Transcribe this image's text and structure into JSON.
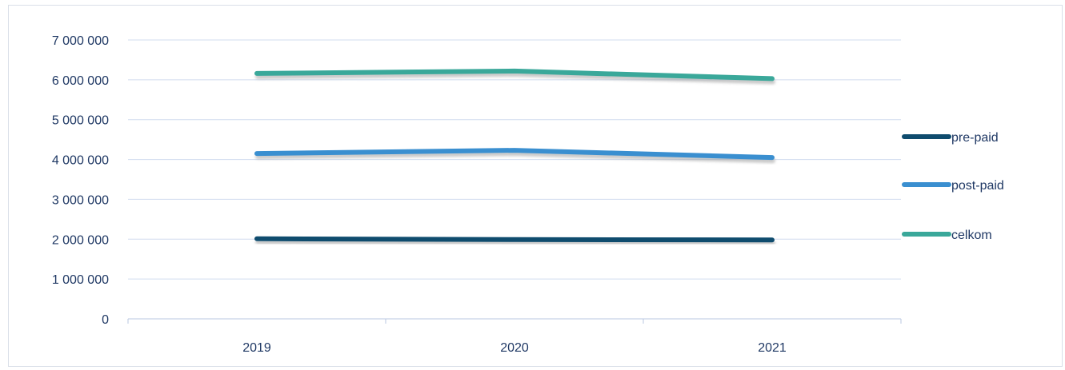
{
  "chart_data": {
    "type": "line",
    "categories": [
      "2019",
      "2020",
      "2021"
    ],
    "series": [
      {
        "name": "pre-paid",
        "values": [
          2010000,
          1990000,
          1980000
        ],
        "color": "#0f4c6e"
      },
      {
        "name": "post-paid",
        "values": [
          4150000,
          4230000,
          4050000
        ],
        "color": "#3a8fd0"
      },
      {
        "name": "celkom",
        "values": [
          6160000,
          6220000,
          6030000
        ],
        "color": "#3aa89a"
      }
    ],
    "ylim": [
      0,
      7000000
    ],
    "yticks": [
      0,
      1000000,
      2000000,
      3000000,
      4000000,
      5000000,
      6000000,
      7000000
    ],
    "ytick_labels": [
      "0",
      "1 000 000",
      "2 000 000",
      "3 000 000",
      "4 000 000",
      "5 000 000",
      "6 000 000",
      "7 000 000"
    ],
    "grid": true,
    "legend_position": "right"
  },
  "colors": {
    "gridline": "#d0dcef",
    "axis": "#b8c7e0",
    "text": "#1f3864",
    "shadow": "#9c9c9c"
  }
}
